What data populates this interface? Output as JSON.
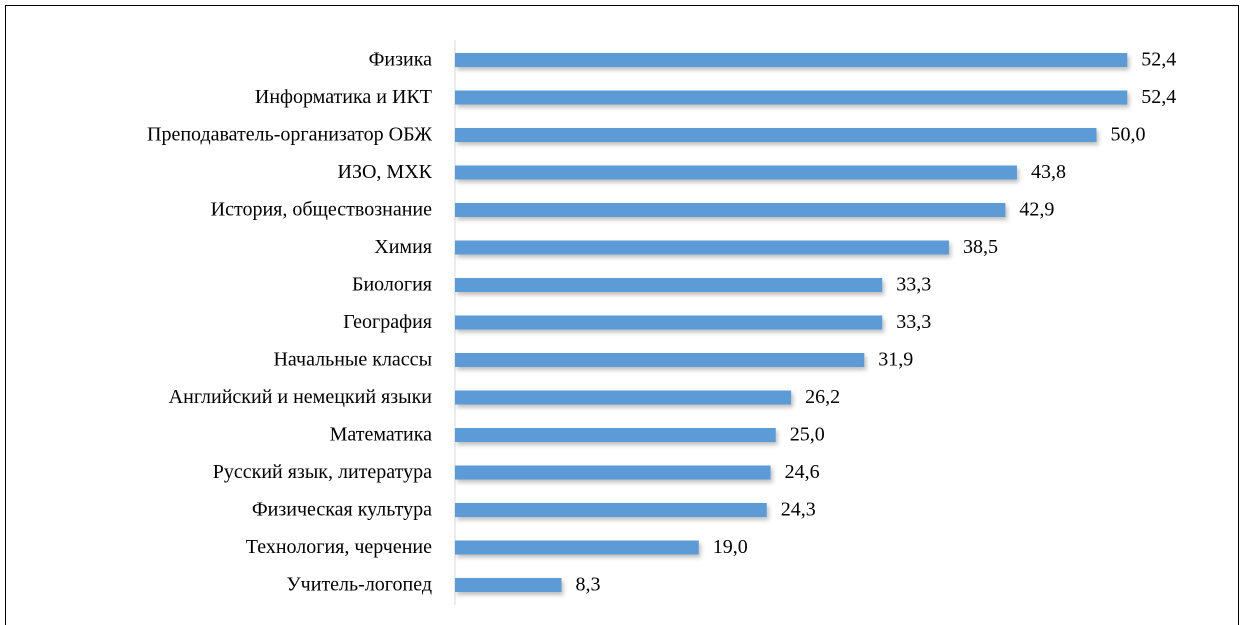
{
  "chart_data": {
    "type": "bar",
    "orientation": "horizontal",
    "color": "#5b9bd5",
    "categories": [
      "Физика",
      "Информатика и ИКТ",
      "Преподаватель-организатор ОБЖ",
      "ИЗО, МХК",
      "История, обществознание",
      "Химия",
      "Биология",
      "География",
      "Начальные классы",
      "Английский и немецкий языки",
      "Математика",
      "Русский язык, литература",
      "Физическая культура",
      "Технология, черчение",
      "Учитель-логопед"
    ],
    "values": [
      52.4,
      52.4,
      50.0,
      43.8,
      42.9,
      38.5,
      33.3,
      33.3,
      31.9,
      26.2,
      25.0,
      24.6,
      24.3,
      19.0,
      8.3
    ],
    "value_labels": [
      "52,4",
      "52,4",
      "50,0",
      "43,8",
      "42,9",
      "38,5",
      "33,3",
      "33,3",
      "31,9",
      "26,2",
      "25,0",
      "24,6",
      "24,3",
      "19,0",
      "8,3"
    ]
  }
}
